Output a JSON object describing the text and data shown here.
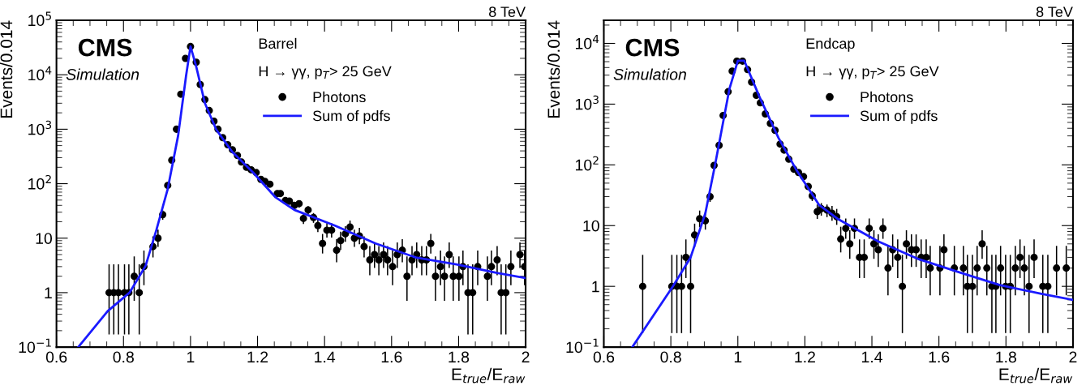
{
  "chart_data": [
    {
      "type": "scatter",
      "title": "8 TeV",
      "xlabel": "E$_{true}$/E$_{raw}$",
      "ylabel": "Events/0.014",
      "log": "y",
      "legend": "top right",
      "annotations": [
        "CMS",
        "Simulation",
        "Barrel",
        "H → γγ, p$_{T}$> 25 GeV"
      ],
      "xlim": [
        0.6,
        2
      ],
      "xticks": [
        0.6,
        0.8,
        1,
        1.2,
        1.4,
        1.6,
        1.8,
        2
      ],
      "ylim": [
        0.1,
        100000
      ],
      "yticks": [
        {
          "value": 0.1,
          "label": "10$^{−1}$"
        },
        1,
        10,
        {
          "value": 100,
          "label": "10$^{2}$"
        },
        {
          "value": 1000,
          "label": "10$^{3}$"
        },
        {
          "value": 10000,
          "label": "10$^{4}$"
        },
        {
          "value": 100000,
          "label": "10$^{5}$"
        }
      ],
      "series": [
        {
          "name": "Photons",
          "marker": "circle",
          "color": "#000000",
          "x": [
            0.757,
            0.771,
            0.785,
            0.803,
            0.816,
            0.832,
            0.847,
            0.861,
            0.888,
            0.903,
            0.917,
            0.932,
            0.944,
            0.958,
            0.971,
            0.985,
            1.0,
            1.017,
            1.029,
            1.043,
            1.056,
            1.07,
            1.082,
            1.096,
            1.111,
            1.125,
            1.14,
            1.152,
            1.167,
            1.181,
            1.196,
            1.21,
            1.222,
            1.237,
            1.259,
            1.268,
            1.283,
            1.295,
            1.31,
            1.324,
            1.337,
            1.351,
            1.367,
            1.38,
            1.394,
            1.407,
            1.421,
            1.436,
            1.448,
            1.462,
            1.476,
            1.489,
            1.504,
            1.518,
            1.535,
            1.549,
            1.562,
            1.576,
            1.588,
            1.603,
            1.617,
            1.632,
            1.646,
            1.661,
            1.675,
            1.69,
            1.704,
            1.717,
            1.731,
            1.746,
            1.758,
            1.772,
            1.784,
            1.801,
            1.813,
            1.828,
            1.842,
            1.857,
            1.886,
            1.898,
            1.915,
            1.927,
            1.941,
            1.956,
            1.983,
            1.997
          ],
          "values": [
            1,
            1,
            1,
            1,
            1,
            2,
            1,
            3,
            7,
            10,
            27,
            93,
            270,
            1000,
            4400,
            20000,
            33000,
            17000,
            6600,
            3500,
            2200,
            1400,
            1000,
            700,
            520,
            420,
            330,
            250,
            200,
            180,
            160,
            120,
            110,
            98,
            66,
            66,
            49,
            48,
            40,
            43,
            23,
            33,
            24,
            17,
            8,
            14,
            14,
            6,
            9,
            12,
            16,
            10,
            11,
            7,
            4,
            5,
            4,
            5,
            4,
            3,
            5,
            6,
            2,
            4,
            5,
            4,
            4,
            8,
            2,
            3,
            2,
            5,
            2,
            2,
            3,
            1,
            1,
            3,
            2,
            3,
            4,
            1,
            1,
            3,
            5,
            3
          ],
          "errors": [
            [
              0.17,
              3.3
            ],
            [
              0.17,
              3.3
            ],
            [
              0.17,
              3.3
            ],
            [
              0.17,
              3.3
            ],
            [
              0.17,
              3.3
            ],
            [
              0.71,
              4.64
            ],
            [
              0.17,
              3.3
            ],
            [
              1.37,
              5.92
            ],
            [
              4.42,
              10.77
            ],
            [
              6.89,
              14.27
            ],
            5.2,
            null,
            null,
            null,
            null,
            null,
            null,
            null,
            null,
            null,
            null,
            null,
            null,
            null,
            null,
            null,
            null,
            null,
            null,
            null,
            null,
            null,
            null,
            null,
            null,
            null,
            7,
            6.9,
            6.3,
            6.6,
            4.8,
            5.7,
            4.9,
            [
              12.9,
              22.2
            ],
            [
              5.23,
              11.95
            ],
            [
              10.29,
              18.83
            ],
            [
              10.29,
              18.83
            ],
            [
              3.62,
              9.58
            ],
            [
              6.06,
              13.11
            ],
            [
              8.58,
              16.56
            ],
            [
              12.03,
              21.08
            ],
            [
              6.89,
              14.27
            ],
            [
              7.73,
              15.42
            ],
            [
              4.42,
              10.77
            ],
            [
              2.09,
              7.16
            ],
            [
              2.84,
              8.38
            ],
            [
              2.09,
              7.16
            ],
            [
              2.84,
              8.38
            ],
            [
              2.09,
              7.16
            ],
            [
              1.37,
              5.92
            ],
            [
              2.84,
              8.38
            ],
            [
              3.62,
              9.58
            ],
            [
              0.71,
              4.64
            ],
            [
              2.09,
              7.16
            ],
            [
              2.84,
              8.38
            ],
            [
              2.09,
              7.16
            ],
            [
              2.09,
              7.16
            ],
            [
              5.23,
              11.95
            ],
            [
              0.71,
              4.64
            ],
            [
              1.37,
              5.92
            ],
            [
              0.71,
              4.64
            ],
            [
              2.84,
              8.38
            ],
            [
              0.71,
              4.64
            ],
            [
              0.71,
              4.64
            ],
            [
              1.37,
              5.92
            ],
            [
              0.17,
              3.3
            ],
            [
              0.17,
              3.3
            ],
            [
              1.37,
              5.92
            ],
            [
              0.71,
              4.64
            ],
            [
              1.37,
              5.92
            ],
            [
              2.09,
              7.16
            ],
            [
              0.17,
              3.3
            ],
            [
              0.17,
              3.3
            ],
            [
              1.37,
              5.92
            ],
            [
              2.84,
              8.38
            ],
            [
              1.37,
              5.92
            ]
          ]
        },
        {
          "name": "Sum of pdfs",
          "type": "line",
          "color": "#1a1aff",
          "x": [
            0.665,
            0.753,
            0.818,
            0.866,
            0.898,
            0.932,
            0.963,
            0.987,
            1.0,
            1.016,
            1.043,
            1.077,
            1.125,
            1.189,
            1.254,
            1.31,
            1.431,
            1.552,
            1.673,
            1.794,
            1.915,
            2.0
          ],
          "values": [
            0.1,
            0.46,
            1,
            3.1,
            14,
            80,
            760,
            9800,
            33000,
            15000,
            3000,
            980,
            380,
            155,
            56,
            33,
            17,
            8,
            4.4,
            3.3,
            2.3,
            1.85
          ]
        }
      ]
    },
    {
      "type": "scatter",
      "title": "8 TeV",
      "xlabel": "E$_{true}$/E$_{raw}$",
      "ylabel": "Events/0.014",
      "log": "y",
      "legend": "top right",
      "annotations": [
        "CMS",
        "Simulation",
        "Endcap",
        "H → γγ, p$_{T}$> 25 GeV"
      ],
      "xlim": [
        0.6,
        2
      ],
      "xticks": [
        0.6,
        0.8,
        1,
        1.2,
        1.4,
        1.6,
        1.8,
        2
      ],
      "ylim": [
        0.1,
        24000
      ],
      "yticks": [
        {
          "value": 0.1,
          "label": "10$^{−1}$"
        },
        1,
        10,
        {
          "value": 100,
          "label": "10$^{2}$"
        },
        {
          "value": 1000,
          "label": "10$^{3}$"
        },
        {
          "value": 10000,
          "label": "10$^{4}$"
        }
      ],
      "series": [
        {
          "name": "Photons",
          "marker": "circle",
          "color": "#000000",
          "x": [
            0.716,
            0.803,
            0.818,
            0.832,
            0.845,
            0.859,
            0.871,
            0.886,
            0.903,
            0.917,
            0.929,
            0.944,
            0.956,
            0.971,
            0.983,
            0.997,
            1.014,
            1.029,
            1.041,
            1.055,
            1.067,
            1.082,
            1.097,
            1.111,
            1.126,
            1.138,
            1.152,
            1.167,
            1.181,
            1.196,
            1.21,
            1.222,
            1.237,
            1.249,
            1.266,
            1.281,
            1.295,
            1.307,
            1.322,
            1.334,
            1.348,
            1.363,
            1.377,
            1.392,
            1.406,
            1.419,
            1.433,
            1.448,
            1.462,
            1.477,
            1.491,
            1.503,
            1.518,
            1.532,
            1.547,
            1.562,
            1.574,
            1.603,
            1.615,
            1.646,
            1.673,
            1.685,
            1.7,
            1.714,
            1.729,
            1.743,
            1.758,
            1.77,
            1.784,
            1.799,
            1.813,
            1.828,
            1.842,
            1.855,
            1.869,
            1.884,
            1.91,
            1.925,
            1.951,
            1.98
          ],
          "values": [
            1,
            1,
            1,
            1,
            3,
            1,
            7,
            13,
            12,
            30,
            98,
            210,
            650,
            1600,
            3500,
            5100,
            5100,
            3700,
            2300,
            1400,
            1050,
            690,
            480,
            370,
            220,
            175,
            124,
            85,
            75,
            64,
            44,
            31,
            17,
            19,
            18,
            16,
            14,
            6,
            9,
            5,
            9,
            3,
            3,
            9,
            5,
            4,
            9,
            2,
            4,
            3,
            1,
            5,
            4,
            4,
            3,
            3,
            2,
            2,
            4,
            2,
            2,
            1,
            1,
            2,
            5,
            2,
            1,
            1,
            2,
            1,
            1,
            2,
            3,
            2,
            1,
            3,
            1,
            1,
            2,
            2
          ],
          "errors": [
            [
              0.17,
              3.3
            ],
            [
              0.17,
              3.3
            ],
            [
              0.17,
              3.3
            ],
            [
              0.17,
              3.3
            ],
            [
              1.37,
              5.92
            ],
            [
              0.17,
              3.3
            ],
            [
              4.42,
              10.77
            ],
            [
              9.43,
              17.7
            ],
            [
              8.58,
              16.56
            ],
            5.5,
            null,
            null,
            null,
            null,
            null,
            null,
            null,
            null,
            null,
            null,
            null,
            null,
            null,
            null,
            null,
            null,
            null,
            null,
            null,
            null,
            null,
            5.6,
            [
              12.9,
              22.2
            ],
            4.4,
            4.2,
            [
              12.03,
              21.08
            ],
            [
              10.29,
              18.83
            ],
            [
              3.62,
              9.58
            ],
            [
              6.06,
              13.11
            ],
            [
              2.84,
              8.38
            ],
            [
              6.06,
              13.11
            ],
            [
              1.37,
              5.92
            ],
            [
              1.37,
              5.92
            ],
            [
              6.06,
              13.11
            ],
            [
              2.84,
              8.38
            ],
            [
              2.09,
              7.16
            ],
            [
              6.06,
              13.11
            ],
            [
              0.71,
              4.64
            ],
            [
              2.09,
              7.16
            ],
            [
              1.37,
              5.92
            ],
            [
              0.17,
              3.3
            ],
            [
              2.84,
              8.38
            ],
            [
              2.09,
              7.16
            ],
            [
              2.09,
              7.16
            ],
            [
              1.37,
              5.92
            ],
            [
              1.37,
              5.92
            ],
            [
              0.71,
              4.64
            ],
            [
              0.71,
              4.64
            ],
            [
              2.09,
              7.16
            ],
            [
              0.71,
              4.64
            ],
            [
              0.71,
              4.64
            ],
            [
              0.17,
              3.3
            ],
            [
              0.17,
              3.3
            ],
            [
              0.71,
              4.64
            ],
            [
              2.84,
              8.38
            ],
            [
              0.71,
              4.64
            ],
            [
              0.17,
              3.3
            ],
            [
              0.17,
              3.3
            ],
            [
              0.71,
              4.64
            ],
            [
              0.17,
              3.3
            ],
            [
              0.17,
              3.3
            ],
            [
              0.71,
              4.64
            ],
            [
              1.37,
              5.92
            ],
            [
              0.71,
              4.64
            ],
            [
              0.17,
              3.3
            ],
            [
              1.37,
              5.92
            ],
            [
              0.17,
              3.3
            ],
            [
              0.17,
              3.3
            ],
            [
              0.71,
              4.64
            ],
            [
              0.71,
              4.64
            ]
          ]
        },
        {
          "name": "Sum of pdfs",
          "type": "line",
          "color": "#1a1aff",
          "x": [
            0.685,
            0.806,
            0.859,
            0.903,
            0.932,
            0.975,
            1.0,
            1.019,
            1.065,
            1.121,
            1.176,
            1.242,
            1.297,
            1.419,
            1.54,
            1.661,
            1.782,
            1.903,
            2.0
          ],
          "values": [
            0.1,
            1,
            3,
            16,
            100,
            1800,
            5200,
            5200,
            1300,
            280,
            80,
            22,
            13,
            5.5,
            2.8,
            1.7,
            1.05,
            0.76,
            0.6
          ]
        }
      ]
    }
  ]
}
